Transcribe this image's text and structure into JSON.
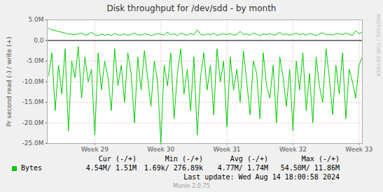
{
  "chart_data": {
    "type": "line",
    "title": "Disk throughput for /dev/sdd - by month",
    "ylabel": "Pr second read (-) / write (+)",
    "x": [
      28.3,
      28.35,
      28.4,
      28.45,
      28.5,
      28.55,
      28.6,
      28.65,
      28.7,
      28.75,
      28.8,
      28.85,
      28.9,
      28.95,
      29,
      29.05,
      29.1,
      29.15,
      29.2,
      29.25,
      29.3,
      29.35,
      29.4,
      29.45,
      29.5,
      29.55,
      29.6,
      29.65,
      29.7,
      29.75,
      29.8,
      29.85,
      29.9,
      29.95,
      30,
      30.05,
      30.1,
      30.15,
      30.2,
      30.25,
      30.3,
      30.35,
      30.4,
      30.45,
      30.5,
      30.55,
      30.6,
      30.65,
      30.7,
      30.75,
      30.8,
      30.85,
      30.9,
      30.95,
      31,
      31.05,
      31.1,
      31.15,
      31.2,
      31.25,
      31.3,
      31.35,
      31.4,
      31.45,
      31.5,
      31.55,
      31.6,
      31.65,
      31.7,
      31.75,
      31.8,
      31.85,
      31.9,
      31.95,
      32,
      32.05,
      32.1,
      32.15,
      32.2,
      32.25,
      32.3,
      32.35,
      32.4,
      32.45,
      32.5,
      32.55,
      32.6,
      32.65,
      32.7,
      32.75,
      32.8,
      32.85,
      32.9,
      32.95,
      33,
      33.05
    ],
    "series": [
      {
        "name": "Bytes",
        "color": "#00cc00",
        "values": [
          3.0,
          2.6,
          2.4,
          2.2,
          2.0,
          1.8,
          1.6,
          1.5,
          1.4,
          1.6,
          1.8,
          1.3,
          1.5,
          2.0,
          1.4,
          1.2,
          1.6,
          1.3,
          1.5,
          1.2,
          1.7,
          1.4,
          1.3,
          1.6,
          1.2,
          1.5,
          1.8,
          1.4,
          1.3,
          1.6,
          1.5,
          1.2,
          1.4,
          1.7,
          1.5,
          1.3,
          2.0,
          1.4,
          1.6,
          1.2,
          1.8,
          1.5,
          1.3,
          1.7,
          1.4,
          2.6,
          1.5,
          1.3,
          1.6,
          1.4,
          1.8,
          1.2,
          1.5,
          1.6,
          1.4,
          1.7,
          1.3,
          1.5,
          2.2,
          1.4,
          1.6,
          1.3,
          1.8,
          1.5,
          1.2,
          1.6,
          1.4,
          1.7,
          1.3,
          1.5,
          2.0,
          1.4,
          1.6,
          1.3,
          1.5,
          1.8,
          1.4,
          1.6,
          1.3,
          1.7,
          1.5,
          1.2,
          1.6,
          1.9,
          1.4,
          1.5,
          1.3,
          1.7,
          1.6,
          1.4,
          1.8,
          1.5,
          1.2,
          2.4,
          1.6,
          2.1
        ]
      },
      {
        "color": "#00cc00",
        "values": [
          -8.5,
          -3,
          -17,
          -6,
          -13,
          -2,
          -22,
          -5,
          -9,
          -1.5,
          -14,
          -4,
          -10,
          -7,
          -23,
          -3,
          -12,
          -5,
          -9,
          -17,
          -2,
          -11,
          -6,
          -15,
          -3,
          -8,
          -20,
          -4,
          -12,
          -2.5,
          -9,
          -16,
          -5,
          -10,
          -25,
          -6,
          -11,
          -3,
          -19,
          -8,
          -2,
          -13,
          -7,
          -17,
          -4,
          -23,
          -9,
          -3,
          -12,
          -6,
          -18,
          -2,
          -10,
          -5,
          -21,
          -4,
          -12,
          -7,
          -15,
          -2.5,
          -10,
          -18,
          -5,
          -8,
          -19,
          -3,
          -11,
          -14,
          -6,
          -20,
          -4,
          -9,
          -16,
          -7,
          -22,
          -5,
          -12,
          -3,
          -17,
          -8,
          -20,
          -4,
          -11,
          -15,
          -2,
          -9,
          -18,
          -6,
          -13,
          -3,
          -19,
          -7,
          -10,
          -14,
          -6,
          -4
        ]
      }
    ],
    "xlim": [
      28.28,
      33.05
    ],
    "xticks": [
      {
        "value": 29,
        "label": "Week 29"
      },
      {
        "value": 30,
        "label": "Week 30"
      },
      {
        "value": 31,
        "label": "Week 31"
      },
      {
        "value": 32,
        "label": "Week 32"
      },
      {
        "value": 33,
        "label": "Week 33"
      }
    ],
    "ylim": [
      -25,
      5
    ],
    "yticks": [
      {
        "value": 5,
        "label": "5.0M"
      },
      {
        "value": 0,
        "label": "0.0"
      },
      {
        "value": -5,
        "label": "-5.0M"
      },
      {
        "value": -10,
        "label": "-10.0M"
      },
      {
        "value": -15,
        "label": "-15.0M"
      },
      {
        "value": -20,
        "label": "-20.0M"
      },
      {
        "value": -25,
        "label": "-25.0M"
      }
    ],
    "grid": true,
    "legend": "bottom",
    "stats": {
      "columns": [
        "Cur (-/+)",
        "Min (-/+)",
        "Avg (-/+)",
        "Max (-/+)"
      ],
      "values": [
        "4.54M/ 1.51M",
        "1.69k/ 276.89k",
        "4.77M/ 1.74M",
        "54.50M/ 11.86M"
      ]
    },
    "notes": {
      "last_update": "Last update: Wed Aug 14 18:00:58 2024",
      "generator": "Munin 2.0.75",
      "watermark": "RRDTOOL / TOBI OETIKER"
    }
  }
}
